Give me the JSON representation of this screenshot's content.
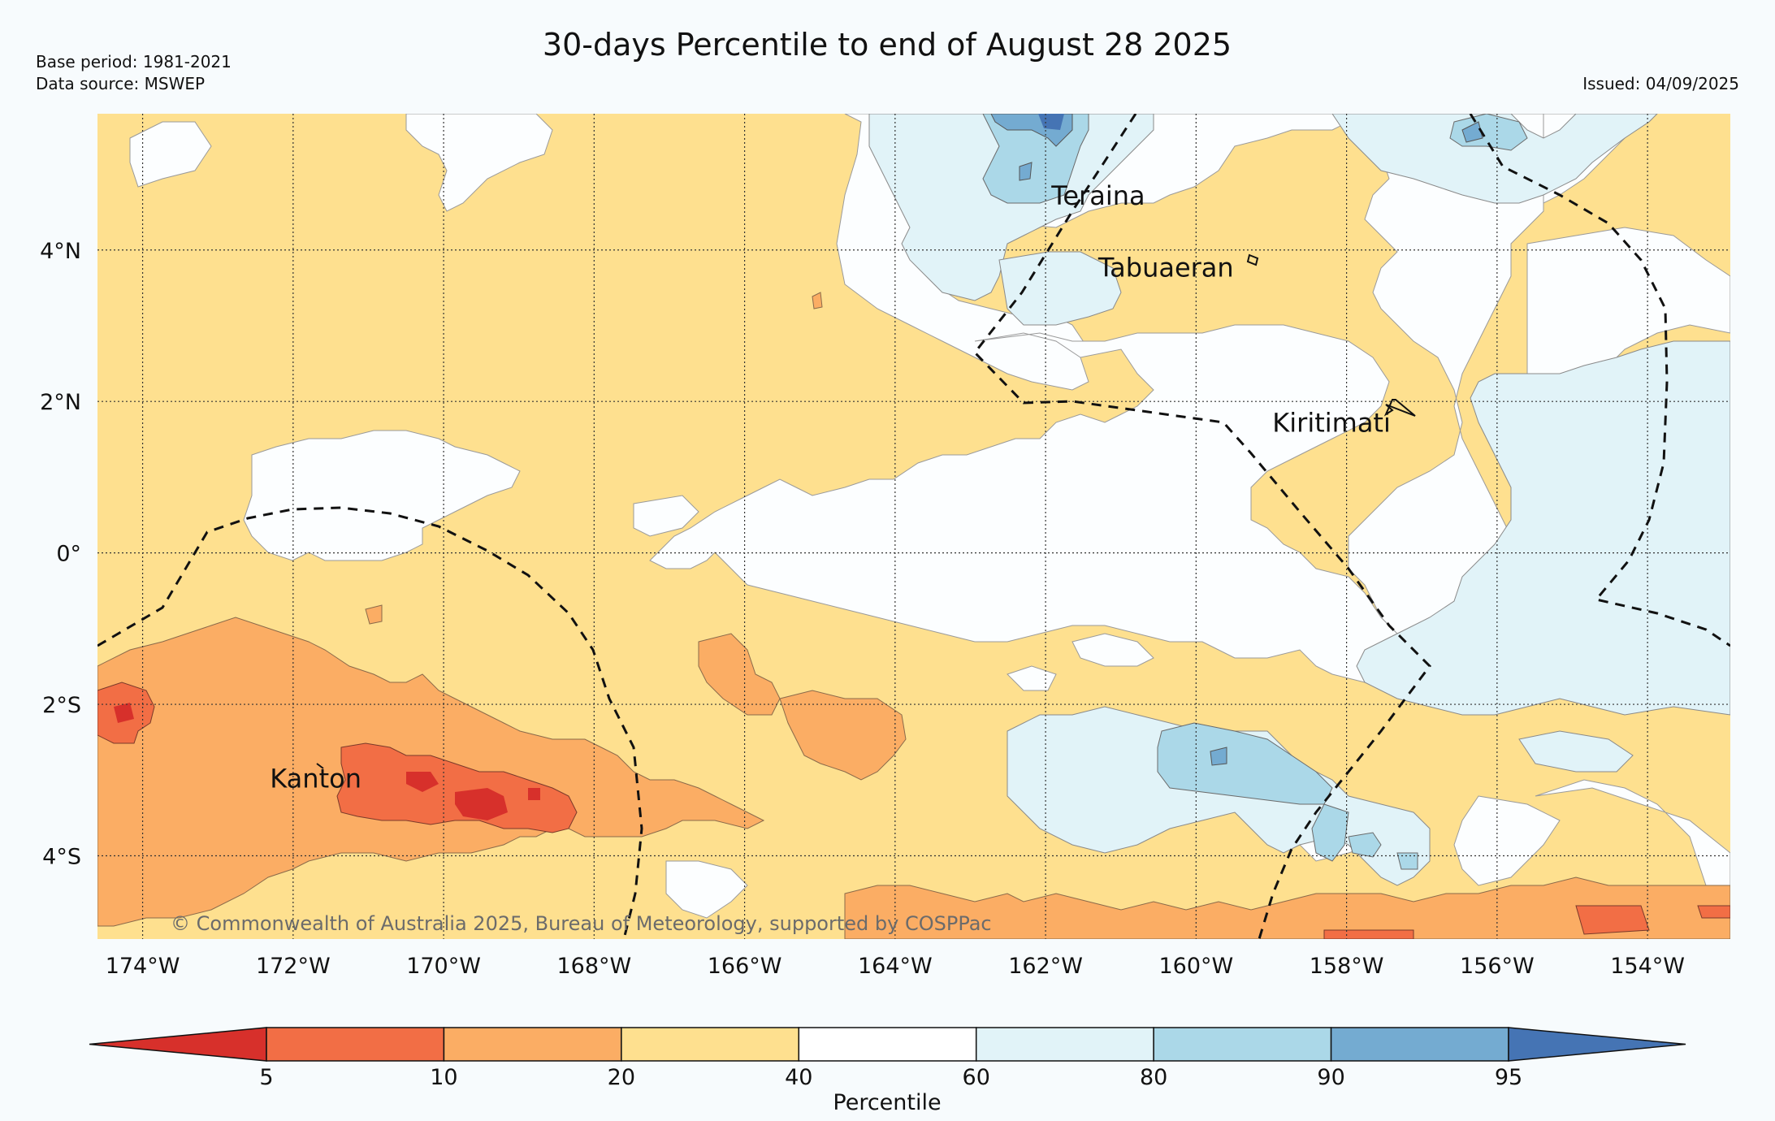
{
  "title": "30-days Percentile to end of August 28 2025",
  "meta": {
    "base_period": "Base period: 1981-2021",
    "data_source": "Data source: MSWEP",
    "issued": "Issued: 04/09/2025"
  },
  "copyright": "© Commonwealth of Australia 2025, Bureau of Meteorology, supported by COSPPac",
  "map": {
    "lon_range": [
      -174.6,
      -152.9
    ],
    "lat_range": [
      -5.1,
      5.8
    ],
    "lon_ticks": [
      {
        "value": -174,
        "label": "174°W"
      },
      {
        "value": -172,
        "label": "172°W"
      },
      {
        "value": -170,
        "label": "170°W"
      },
      {
        "value": -168,
        "label": "168°W"
      },
      {
        "value": -166,
        "label": "166°W"
      },
      {
        "value": -164,
        "label": "164°W"
      },
      {
        "value": -162,
        "label": "162°W"
      },
      {
        "value": -160,
        "label": "160°W"
      },
      {
        "value": -158,
        "label": "158°W"
      },
      {
        "value": -156,
        "label": "156°W"
      },
      {
        "value": -154,
        "label": "154°W"
      }
    ],
    "lat_ticks": [
      {
        "value": 4,
        "label": "4°N"
      },
      {
        "value": 2,
        "label": "2°N"
      },
      {
        "value": 0,
        "label": "0°"
      },
      {
        "value": -2,
        "label": "2°S"
      },
      {
        "value": -4,
        "label": "4°S"
      }
    ],
    "places": [
      {
        "name": "Teraina",
        "lon": -161.3,
        "lat": 4.6
      },
      {
        "name": "Tabuaeran",
        "lon": -160.4,
        "lat": 3.65
      },
      {
        "name": "Kiritimati",
        "lon": -158.2,
        "lat": 1.6
      },
      {
        "name": "Kanton",
        "lon": -171.7,
        "lat": -3.1
      }
    ]
  },
  "legend": {
    "label": "Percentile",
    "ticks": [
      "5",
      "10",
      "20",
      "40",
      "60",
      "80",
      "90",
      "95"
    ],
    "colors": [
      "#d7302b",
      "#f26e45",
      "#fbad64",
      "#fee08f",
      "#ffffff",
      "#e1f3f8",
      "#abd8e8",
      "#74abd1",
      "#4574b4"
    ]
  }
}
